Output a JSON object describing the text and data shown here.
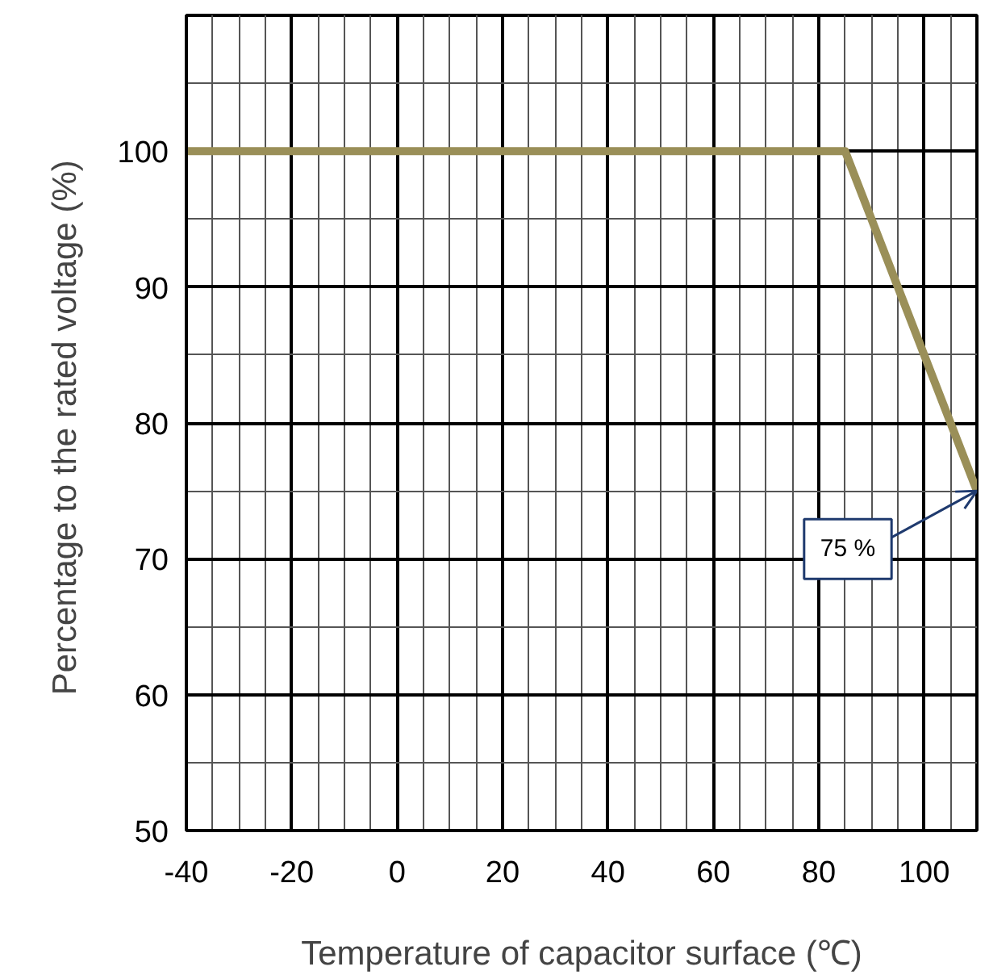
{
  "chart_data": {
    "type": "line",
    "xlabel": "Temperature of capacitor surface (℃)",
    "ylabel": "Percentage to the rated voltage  (%)",
    "x": [
      -40,
      85,
      110
    ],
    "values": [
      100,
      100,
      75
    ],
    "color": "#9a8f58",
    "xlim": [
      -40,
      110
    ],
    "ylim": [
      50,
      110
    ],
    "xticks": [
      -40,
      -20,
      0,
      20,
      40,
      60,
      80,
      100
    ],
    "yticks": [
      50,
      60,
      70,
      80,
      90,
      100
    ],
    "grid": true,
    "marker": "none",
    "line_style": "solid",
    "annotations": [
      {
        "text": "75 %",
        "x": 110,
        "y": 75
      }
    ]
  }
}
